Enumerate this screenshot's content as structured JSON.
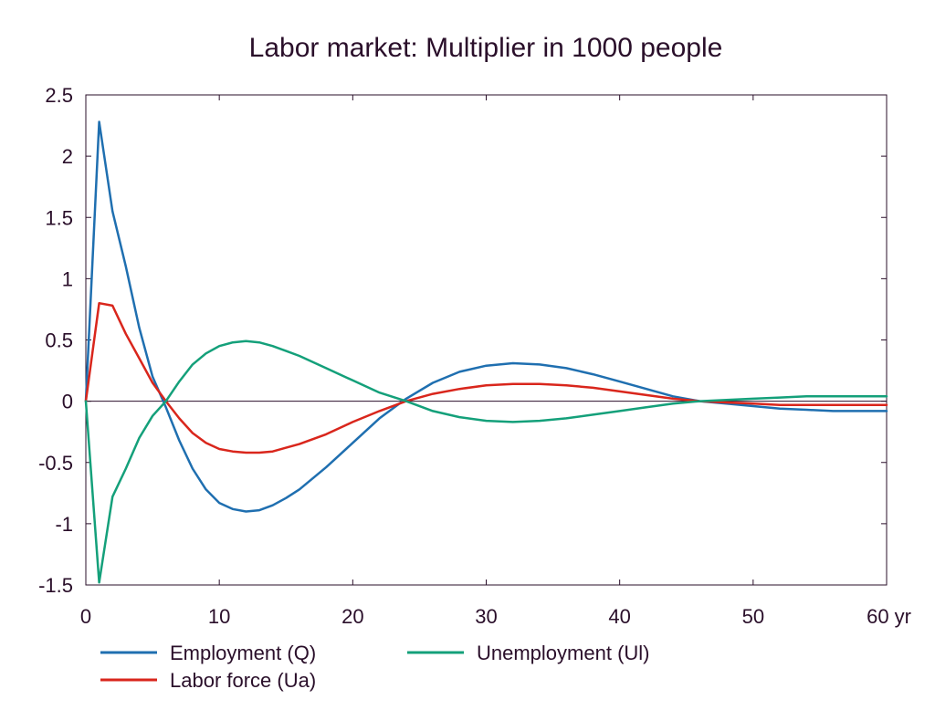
{
  "chart_data": {
    "type": "line",
    "title": "Labor market: Multiplier in 1000 people",
    "xlabel": "",
    "ylabel": "",
    "x_unit_label": "yr",
    "xlim": [
      0,
      60
    ],
    "ylim": [
      -1.5,
      2.5
    ],
    "x_ticks": [
      "0",
      "10",
      "20",
      "30",
      "40",
      "50",
      "60"
    ],
    "y_ticks": [
      "2.5",
      "2",
      "1.5",
      "1",
      "0.5",
      "0",
      "-0.5",
      "-1",
      "-1.5"
    ],
    "x_tick_values": [
      0,
      10,
      20,
      30,
      40,
      50,
      60
    ],
    "y_tick_values": [
      2.5,
      2,
      1.5,
      1,
      0.5,
      0,
      -0.5,
      -1,
      -1.5
    ],
    "grid": false,
    "zero_line": true,
    "legend_position": "bottom",
    "series": [
      {
        "name": "Employment (Q)",
        "color": "#1f6fb0",
        "x": [
          0,
          1,
          2,
          3,
          4,
          5,
          6,
          7,
          8,
          9,
          10,
          11,
          12,
          13,
          14,
          15,
          16,
          18,
          20,
          22,
          24,
          26,
          28,
          30,
          32,
          34,
          36,
          38,
          40,
          42,
          44,
          46,
          48,
          50,
          52,
          54,
          56,
          58,
          60
        ],
        "values": [
          0,
          2.28,
          1.55,
          1.1,
          0.6,
          0.2,
          -0.05,
          -0.32,
          -0.55,
          -0.72,
          -0.83,
          -0.88,
          -0.9,
          -0.89,
          -0.85,
          -0.79,
          -0.72,
          -0.54,
          -0.34,
          -0.14,
          0.02,
          0.15,
          0.24,
          0.29,
          0.31,
          0.3,
          0.27,
          0.22,
          0.16,
          0.1,
          0.04,
          0.0,
          -0.02,
          -0.04,
          -0.06,
          -0.07,
          -0.08,
          -0.08,
          -0.08
        ]
      },
      {
        "name": "Labor force (Ua)",
        "color": "#d9261c",
        "x": [
          0,
          1,
          2,
          3,
          4,
          5,
          6,
          7,
          8,
          9,
          10,
          11,
          12,
          13,
          14,
          15,
          16,
          18,
          20,
          22,
          24,
          26,
          28,
          30,
          32,
          34,
          36,
          38,
          40,
          42,
          44,
          46,
          48,
          50,
          52,
          54,
          56,
          58,
          60
        ],
        "values": [
          0,
          0.8,
          0.78,
          0.55,
          0.35,
          0.15,
          0.0,
          -0.14,
          -0.26,
          -0.34,
          -0.39,
          -0.41,
          -0.42,
          -0.42,
          -0.41,
          -0.38,
          -0.35,
          -0.27,
          -0.17,
          -0.08,
          0.0,
          0.06,
          0.1,
          0.13,
          0.14,
          0.14,
          0.13,
          0.11,
          0.08,
          0.05,
          0.02,
          0.0,
          -0.01,
          -0.02,
          -0.03,
          -0.03,
          -0.03,
          -0.03,
          -0.03
        ]
      },
      {
        "name": "Unemployment (Ul)",
        "color": "#14a07a",
        "x": [
          0,
          1,
          2,
          3,
          4,
          5,
          6,
          7,
          8,
          9,
          10,
          11,
          12,
          13,
          14,
          15,
          16,
          18,
          20,
          22,
          24,
          26,
          28,
          30,
          32,
          34,
          36,
          38,
          40,
          42,
          44,
          46,
          48,
          50,
          52,
          54,
          56,
          58,
          60
        ],
        "values": [
          0,
          -1.48,
          -0.78,
          -0.55,
          -0.3,
          -0.12,
          0.0,
          0.16,
          0.3,
          0.39,
          0.45,
          0.48,
          0.49,
          0.48,
          0.45,
          0.41,
          0.37,
          0.27,
          0.17,
          0.07,
          0.0,
          -0.08,
          -0.13,
          -0.16,
          -0.17,
          -0.16,
          -0.14,
          -0.11,
          -0.08,
          -0.05,
          -0.02,
          0.0,
          0.01,
          0.02,
          0.03,
          0.04,
          0.04,
          0.04,
          0.04
        ]
      }
    ]
  },
  "colors": {
    "text": "#2a0f2a",
    "axis": "#2a0f2a",
    "background": "#ffffff"
  }
}
